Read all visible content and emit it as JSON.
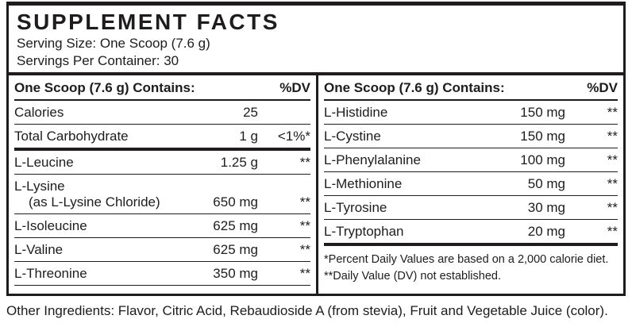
{
  "label": {
    "title": "SUPPLEMENT FACTS",
    "serving_size": "Serving Size: One Scoop (7.6 g)",
    "servings_per_container": "Servings Per Container: 30",
    "other_ingredients": "Other Ingredients: Flavor, Citric Acid, Rebaudioside A (from stevia), Fruit and Vegetable Juice (color)."
  },
  "columns": [
    {
      "header": {
        "contains": "One Scoop (7.6 g) Contains:",
        "dv": "%DV"
      },
      "rows": [
        {
          "name": "Calories",
          "amount": "25",
          "dv": ""
        },
        {
          "name": "Total Carbohydrate",
          "amount": "1 g",
          "dv": "<1%*",
          "thick_below": true
        },
        {
          "name": "L-Leucine",
          "amount": "1.25 g",
          "dv": "**"
        },
        {
          "name": "L-Lysine",
          "sub": "(as L-Lysine Chloride)",
          "amount": "650 mg",
          "dv": "**"
        },
        {
          "name": "L-Isoleucine",
          "amount": "625 mg",
          "dv": "**"
        },
        {
          "name": "L-Valine",
          "amount": "625 mg",
          "dv": "**"
        },
        {
          "name": "L-Threonine",
          "amount": "350 mg",
          "dv": "**"
        }
      ]
    },
    {
      "header": {
        "contains": "One Scoop (7.6 g) Contains:",
        "dv": "%DV"
      },
      "rows": [
        {
          "name": "L-Histidine",
          "amount": "150 mg",
          "dv": "**"
        },
        {
          "name": "L-Cystine",
          "amount": "150 mg",
          "dv": "**"
        },
        {
          "name": "L-Phenylalanine",
          "amount": "100 mg",
          "dv": "**"
        },
        {
          "name": "L-Methionine",
          "amount": "50 mg",
          "dv": "**"
        },
        {
          "name": "L-Tyrosine",
          "amount": "30 mg",
          "dv": "**"
        },
        {
          "name": "L-Tryptophan",
          "amount": "20 mg",
          "dv": "**",
          "thick_below": true
        }
      ],
      "footnotes": [
        "*Percent Daily Values are based on a 2,000 calorie diet.",
        "**Daily Value (DV) not established."
      ]
    }
  ],
  "colors": {
    "ink": "#1e1c1c",
    "background": "#ffffff"
  }
}
